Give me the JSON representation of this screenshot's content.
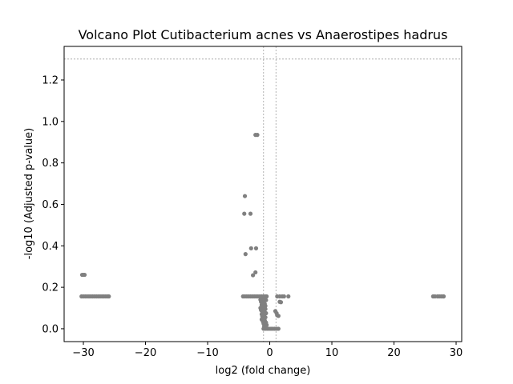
{
  "chart_data": {
    "type": "scatter",
    "title": "Volcano Plot Cutibacterium acnes vs Anaerostipes hadrus",
    "xlabel": "log2 (fold change)",
    "ylabel": "-log10 (Adjusted p-value)",
    "xlim": [
      -33.1,
      30.9
    ],
    "ylim": [
      -0.062,
      1.362
    ],
    "xticks": [
      -30,
      -20,
      -10,
      0,
      10,
      20,
      30
    ],
    "xtick_labels": [
      "−30",
      "−20",
      "−10",
      "0",
      "10",
      "20",
      "30"
    ],
    "yticks": [
      0.0,
      0.2,
      0.4,
      0.6,
      0.8,
      1.0,
      1.2
    ],
    "ytick_labels": [
      "0.0",
      "0.2",
      "0.4",
      "0.6",
      "0.8",
      "1.0",
      "1.2"
    ],
    "reference_lines": {
      "horizontal": [
        1.301
      ],
      "vertical": [
        -1,
        1
      ]
    },
    "grid": false,
    "legend": "none",
    "point_color": "#808080",
    "line_color": "#a0a0a0",
    "points": [
      {
        "x": -30.2,
        "y": 0.26
      },
      {
        "x": -30.0,
        "y": 0.26
      },
      {
        "x": -29.8,
        "y": 0.26
      },
      {
        "x": -30.3,
        "y": 0.156
      },
      {
        "x": -30.0,
        "y": 0.156
      },
      {
        "x": -29.7,
        "y": 0.156
      },
      {
        "x": -29.4,
        "y": 0.156
      },
      {
        "x": -29.1,
        "y": 0.156
      },
      {
        "x": -28.8,
        "y": 0.156
      },
      {
        "x": -28.5,
        "y": 0.156
      },
      {
        "x": -28.2,
        "y": 0.156
      },
      {
        "x": -27.9,
        "y": 0.156
      },
      {
        "x": -27.6,
        "y": 0.156
      },
      {
        "x": -27.3,
        "y": 0.156
      },
      {
        "x": -27.0,
        "y": 0.156
      },
      {
        "x": -26.7,
        "y": 0.156
      },
      {
        "x": -26.4,
        "y": 0.156
      },
      {
        "x": -26.1,
        "y": 0.156
      },
      {
        "x": -25.9,
        "y": 0.156
      },
      {
        "x": -4.3,
        "y": 0.156
      },
      {
        "x": -4.0,
        "y": 0.156
      },
      {
        "x": -3.7,
        "y": 0.156
      },
      {
        "x": -3.4,
        "y": 0.156
      },
      {
        "x": -3.1,
        "y": 0.156
      },
      {
        "x": -2.8,
        "y": 0.156
      },
      {
        "x": -2.5,
        "y": 0.156
      },
      {
        "x": -2.2,
        "y": 0.156
      },
      {
        "x": -1.9,
        "y": 0.156
      },
      {
        "x": -1.6,
        "y": 0.156
      },
      {
        "x": -1.3,
        "y": 0.156
      },
      {
        "x": -1.0,
        "y": 0.156
      },
      {
        "x": -0.7,
        "y": 0.156
      },
      {
        "x": -0.5,
        "y": 0.156
      },
      {
        "x": -2.3,
        "y": 0.935
      },
      {
        "x": -2.0,
        "y": 0.935
      },
      {
        "x": -4.0,
        "y": 0.64
      },
      {
        "x": -4.1,
        "y": 0.555
      },
      {
        "x": -3.1,
        "y": 0.555
      },
      {
        "x": -3.0,
        "y": 0.388
      },
      {
        "x": -2.2,
        "y": 0.388
      },
      {
        "x": -3.9,
        "y": 0.36
      },
      {
        "x": -2.3,
        "y": 0.272
      },
      {
        "x": -2.7,
        "y": 0.258
      },
      {
        "x": -1.5,
        "y": 0.14
      },
      {
        "x": -1.2,
        "y": 0.14
      },
      {
        "x": -0.9,
        "y": 0.14
      },
      {
        "x": -0.6,
        "y": 0.138
      },
      {
        "x": -1.4,
        "y": 0.13
      },
      {
        "x": -1.0,
        "y": 0.13
      },
      {
        "x": -0.8,
        "y": 0.12
      },
      {
        "x": -1.3,
        "y": 0.115
      },
      {
        "x": -1.1,
        "y": 0.11
      },
      {
        "x": -0.7,
        "y": 0.11
      },
      {
        "x": -1.5,
        "y": 0.1
      },
      {
        "x": -1.0,
        "y": 0.1
      },
      {
        "x": -0.7,
        "y": 0.095
      },
      {
        "x": -1.4,
        "y": 0.09
      },
      {
        "x": -0.9,
        "y": 0.085
      },
      {
        "x": -1.2,
        "y": 0.08
      },
      {
        "x": -0.6,
        "y": 0.075
      },
      {
        "x": -1.3,
        "y": 0.07
      },
      {
        "x": -0.9,
        "y": 0.065
      },
      {
        "x": -1.2,
        "y": 0.06
      },
      {
        "x": -0.7,
        "y": 0.055
      },
      {
        "x": -1.0,
        "y": 0.05
      },
      {
        "x": -1.3,
        "y": 0.045
      },
      {
        "x": -0.8,
        "y": 0.04
      },
      {
        "x": -1.1,
        "y": 0.035
      },
      {
        "x": -0.6,
        "y": 0.03
      },
      {
        "x": -1.0,
        "y": 0.025
      },
      {
        "x": -0.8,
        "y": 0.02
      },
      {
        "x": -0.5,
        "y": 0.018
      },
      {
        "x": -0.9,
        "y": 0.012
      },
      {
        "x": -0.6,
        "y": 0.008
      },
      {
        "x": -1.0,
        "y": 0.0
      },
      {
        "x": -0.7,
        "y": 0.0
      },
      {
        "x": -0.4,
        "y": 0.0
      },
      {
        "x": -0.1,
        "y": 0.0
      },
      {
        "x": 0.2,
        "y": 0.0
      },
      {
        "x": 0.5,
        "y": 0.0
      },
      {
        "x": 0.8,
        "y": 0.0
      },
      {
        "x": 1.1,
        "y": 0.0
      },
      {
        "x": 1.4,
        "y": 0.0
      },
      {
        "x": 1.2,
        "y": 0.156
      },
      {
        "x": 1.6,
        "y": 0.156
      },
      {
        "x": 2.0,
        "y": 0.156
      },
      {
        "x": 2.3,
        "y": 0.156
      },
      {
        "x": 3.0,
        "y": 0.156
      },
      {
        "x": 1.6,
        "y": 0.13
      },
      {
        "x": 1.8,
        "y": 0.128
      },
      {
        "x": 0.9,
        "y": 0.085
      },
      {
        "x": 1.1,
        "y": 0.075
      },
      {
        "x": 1.2,
        "y": 0.065
      },
      {
        "x": 1.4,
        "y": 0.062
      },
      {
        "x": 26.3,
        "y": 0.156
      },
      {
        "x": 26.6,
        "y": 0.156
      },
      {
        "x": 27.0,
        "y": 0.156
      },
      {
        "x": 27.3,
        "y": 0.156
      },
      {
        "x": 27.6,
        "y": 0.156
      },
      {
        "x": 27.9,
        "y": 0.156
      },
      {
        "x": 28.0,
        "y": 0.156
      }
    ]
  }
}
